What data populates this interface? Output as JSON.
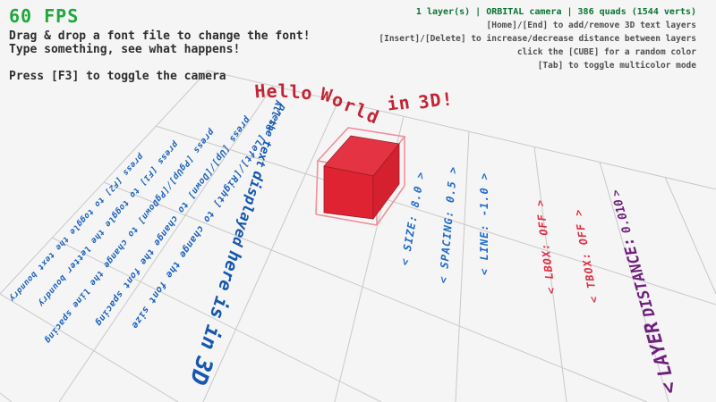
{
  "hud": {
    "fps": "60 FPS",
    "help": [
      "Drag & drop a font file to change the font!",
      "Type something, see what happens!",
      "Press [F3] to toggle the camera"
    ],
    "status": "1 layer(s) | ORBITAL camera |  386 quads (1544 verts)",
    "right_help": [
      "[Home]/[End] to add/remove 3D text layers",
      "[Insert]/[Delete] to increase/decrease distance between layers",
      "click the [CUBE] for a random color",
      "[Tab] to toggle multicolor mode"
    ]
  },
  "scene": {
    "wave_title": "Hello World in 3D!",
    "ground_lines": [
      "press [F2] to toggle the text boundry",
      "press [F1] to toggle the letter boundry",
      "press [PgUp]/[PgDown] to change the line spacing",
      "press [Up]/[Down] to change the font spacing",
      "press [Left]/[Right] to change the font size"
    ],
    "big_text": "All the text displayed here is in 3D",
    "settings": {
      "size": "< SIZE: 8.0 >",
      "spacing": "< SPACING: 0.5 >",
      "line": "< LINE: -1.0 >",
      "lbox": "< LBOX: OFF >",
      "tbox": "< TBOX: OFF >",
      "layer_distance": "< LAYER DISTANCE: 0.010 >"
    },
    "cube": {
      "label": "red cube"
    }
  },
  "colors": {
    "background": "#f5f5f5",
    "grid": "#c8c8c8",
    "fps_green": "#1ea83c",
    "status_green": "#0a7433",
    "help_gray": "#505050",
    "help_dark": "#2e2e2e",
    "instr_blue": "#1a61bd",
    "big_blue": "#1558ad",
    "settings_blue": "#1f6ac8",
    "settings_red": "#e12e40",
    "title_red": "#c22433",
    "cube_top": "#e43443",
    "cube_front": "#df2332",
    "cube_side": "#d5202f",
    "cube_wire": "#ef9099",
    "cube_edge": "#9e1b26",
    "purple": "#701f7e"
  }
}
